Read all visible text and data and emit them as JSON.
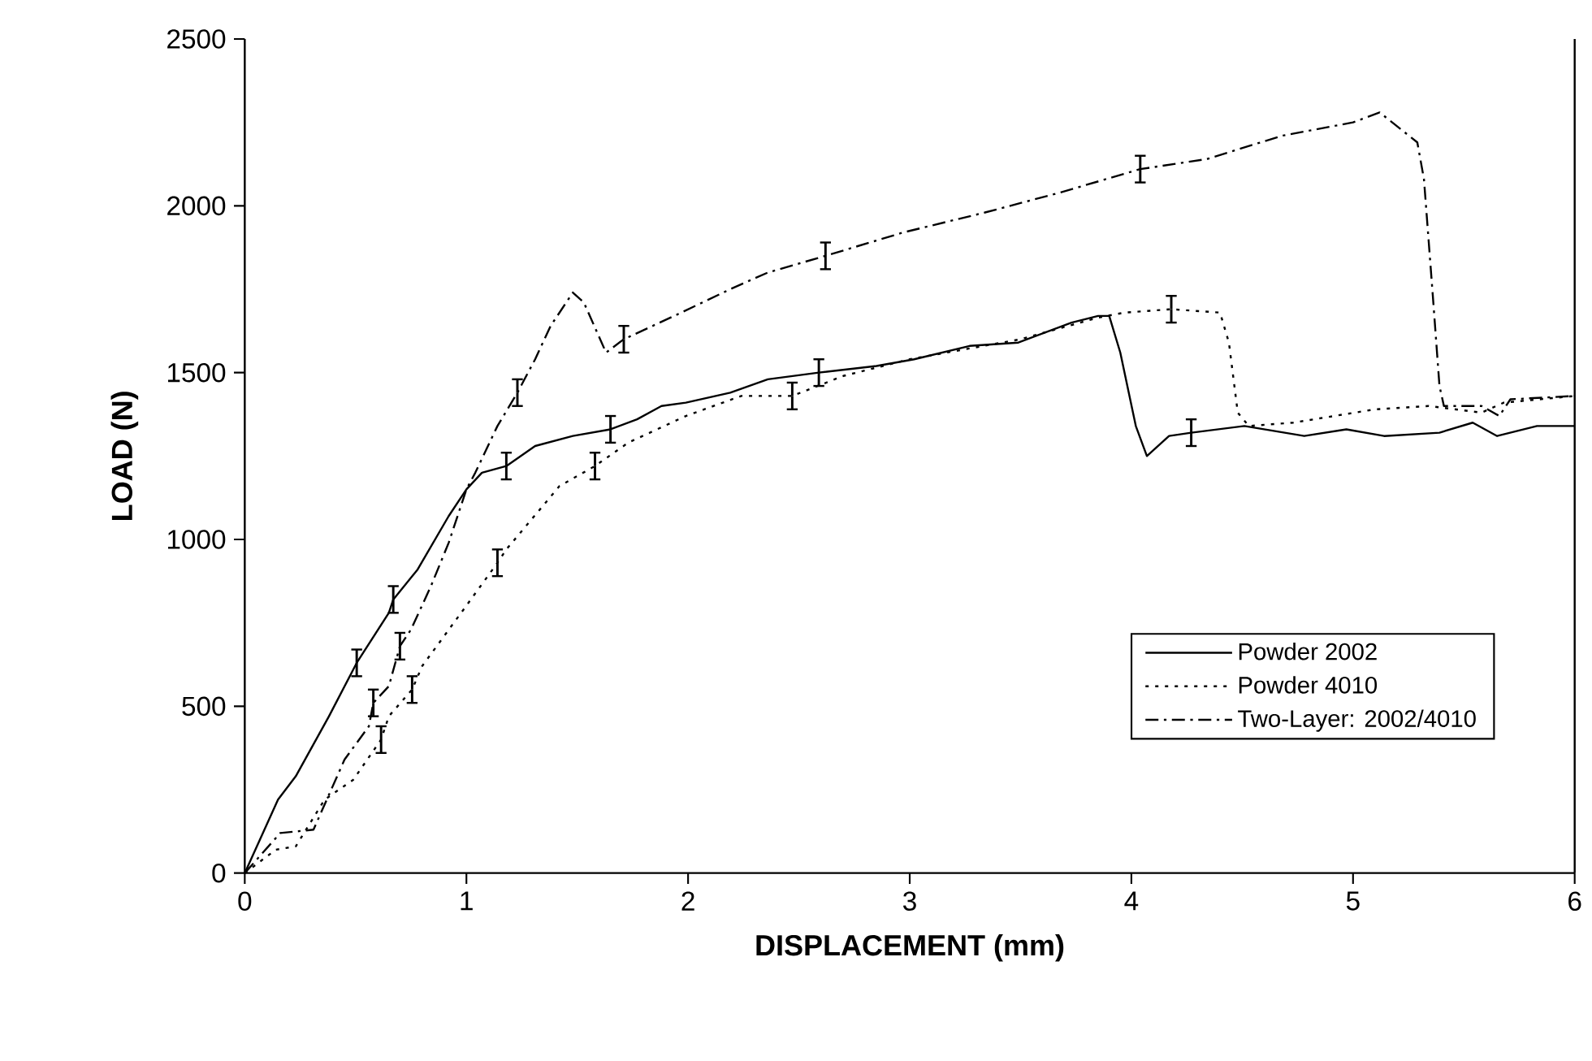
{
  "chart_data": {
    "type": "line",
    "xlabel": "DISPLACEMENT (mm)",
    "ylabel": "LOAD (N)",
    "xlim": [
      0,
      6
    ],
    "ylim": [
      0,
      2500
    ],
    "xticks": [
      0,
      1,
      2,
      3,
      4,
      5,
      6
    ],
    "yticks": [
      0,
      500,
      1000,
      1500,
      2000,
      2500
    ],
    "grid": false,
    "legend": "bottom right",
    "marker": "none",
    "series": [
      {
        "name": "Powder 2002",
        "color": "#000000",
        "line_style": "solid",
        "x": [
          0,
          0.15,
          0.23,
          0.38,
          0.505,
          0.65,
          0.67,
          0.78,
          0.92,
          1.0,
          1.07,
          1.18,
          1.31,
          1.48,
          1.65,
          1.77,
          1.88,
          1.99,
          2.19,
          2.36,
          2.59,
          2.85,
          3.02,
          3.27,
          3.49,
          3.73,
          3.85,
          3.9,
          3.95,
          4.02,
          4.07,
          4.17,
          4.27,
          4.51,
          4.78,
          4.97,
          5.14,
          5.39,
          5.54,
          5.65,
          5.83,
          6.0
        ],
        "values": [
          0,
          220,
          290,
          470,
          630,
          780,
          820,
          910,
          1070,
          1150,
          1200,
          1220,
          1280,
          1310,
          1330,
          1360,
          1400,
          1410,
          1440,
          1480,
          1500,
          1520,
          1540,
          1580,
          1590,
          1650,
          1670,
          1670,
          1560,
          1340,
          1250,
          1310,
          1320,
          1340,
          1310,
          1330,
          1310,
          1320,
          1350,
          1310,
          1340,
          1340
        ],
        "errors": [
          null,
          null,
          null,
          null,
          40,
          null,
          40,
          null,
          null,
          null,
          null,
          40,
          null,
          null,
          40,
          null,
          null,
          null,
          null,
          null,
          40,
          null,
          null,
          null,
          null,
          null,
          null,
          null,
          null,
          null,
          null,
          null,
          40,
          null,
          null,
          null,
          null,
          null,
          null,
          null,
          null,
          null
        ]
      },
      {
        "name": "Powder 4010",
        "color": "#000000",
        "line_style": "dotted",
        "x": [
          0,
          0.14,
          0.23,
          0.36,
          0.49,
          0.615,
          0.65,
          0.755,
          0.8,
          1.02,
          1.14,
          1.18,
          1.42,
          1.58,
          1.73,
          1.99,
          2.24,
          2.47,
          2.7,
          3.0,
          3.5,
          3.85,
          3.97,
          4.18,
          4.4,
          4.44,
          4.48,
          4.53,
          4.73,
          5.1,
          5.34,
          5.58,
          5.68,
          6.0
        ],
        "values": [
          0,
          70,
          80,
          220,
          280,
          400,
          470,
          550,
          620,
          820,
          930,
          970,
          1160,
          1220,
          1290,
          1370,
          1430,
          1430,
          1490,
          1540,
          1600,
          1665,
          1680,
          1690,
          1680,
          1590,
          1380,
          1340,
          1350,
          1390,
          1400,
          1380,
          1410,
          1430
        ],
        "errors": [
          null,
          null,
          null,
          null,
          null,
          40,
          null,
          40,
          null,
          null,
          40,
          null,
          null,
          40,
          null,
          null,
          null,
          40,
          null,
          null,
          null,
          null,
          null,
          40,
          null,
          null,
          null,
          null,
          null,
          null,
          null,
          null,
          null,
          null
        ]
      },
      {
        "name": "Two-Layer: 2002/4010",
        "color": "#000000",
        "line_style": "dashdot",
        "x": [
          0,
          0.16,
          0.31,
          0.45,
          0.56,
          0.58,
          0.65,
          0.7,
          0.75,
          0.84,
          0.92,
          1.0,
          1.04,
          1.14,
          1.23,
          1.31,
          1.38,
          1.48,
          1.53,
          1.63,
          1.71,
          1.97,
          2.19,
          2.36,
          2.62,
          2.97,
          3.34,
          3.68,
          4.04,
          4.34,
          4.68,
          5.0,
          5.12,
          5.29,
          5.32,
          5.36,
          5.39,
          5.41,
          5.58,
          5.66,
          5.71,
          6.0
        ],
        "values": [
          0,
          120,
          130,
          340,
          440,
          510,
          560,
          680,
          730,
          860,
          990,
          1150,
          1200,
          1340,
          1440,
          1540,
          1640,
          1740,
          1710,
          1560,
          1600,
          1680,
          1750,
          1800,
          1850,
          1920,
          1980,
          2040,
          2110,
          2140,
          2210,
          2250,
          2280,
          2190,
          2080,
          1730,
          1460,
          1400,
          1400,
          1370,
          1420,
          1430
        ],
        "errors": [
          null,
          null,
          null,
          null,
          null,
          40,
          null,
          40,
          null,
          null,
          null,
          null,
          null,
          null,
          40,
          null,
          null,
          null,
          null,
          null,
          40,
          null,
          null,
          null,
          40,
          null,
          null,
          null,
          40,
          null,
          null,
          null,
          null,
          null,
          null,
          null,
          null,
          null,
          null,
          null,
          null,
          null
        ]
      }
    ]
  }
}
